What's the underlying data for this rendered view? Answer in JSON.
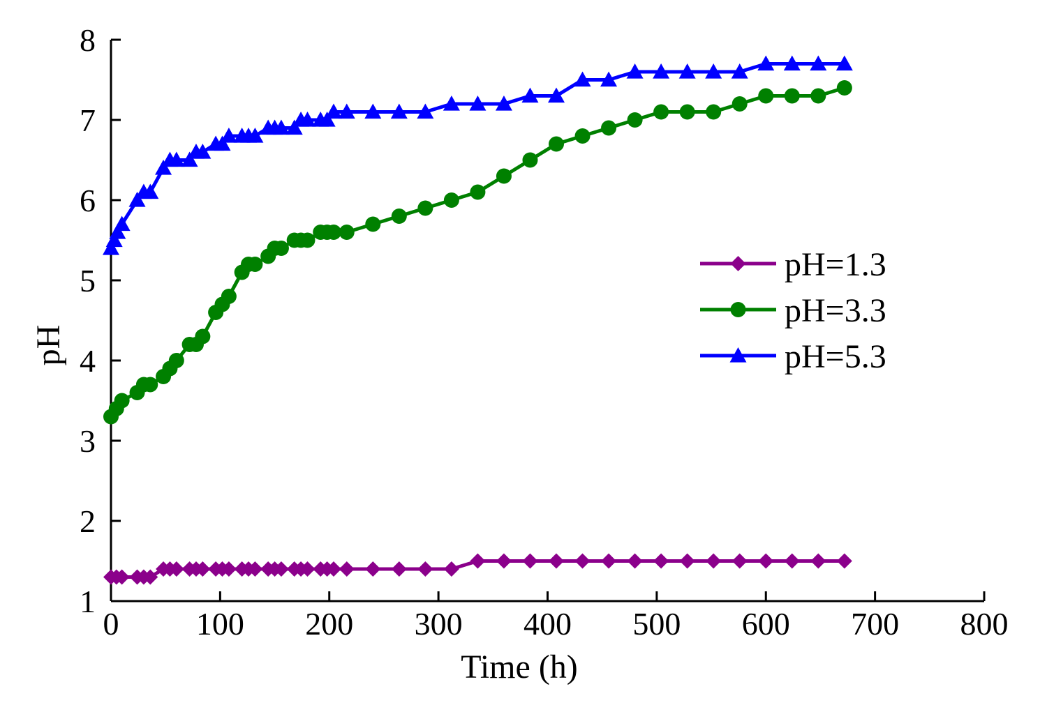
{
  "chart_data": {
    "type": "line",
    "title": "",
    "xlabel": "Time (h)",
    "ylabel": "pH",
    "xlim": [
      0,
      800
    ],
    "ylim": [
      1,
      8
    ],
    "xticks": [
      0,
      100,
      200,
      300,
      400,
      500,
      600,
      700,
      800
    ],
    "yticks": [
      1,
      2,
      3,
      4,
      5,
      6,
      7,
      8
    ],
    "grid": false,
    "legend_position": "right",
    "series": [
      {
        "name": "pH=1.3",
        "color": "#8B008B",
        "marker": "diamond",
        "x": [
          0,
          5,
          10,
          24,
          30,
          36,
          48,
          54,
          60,
          72,
          78,
          84,
          96,
          102,
          108,
          120,
          126,
          132,
          144,
          150,
          156,
          168,
          174,
          180,
          192,
          198,
          204,
          216,
          240,
          264,
          288,
          312,
          336,
          360,
          384,
          408,
          432,
          456,
          480,
          504,
          528,
          552,
          576,
          600,
          624,
          648,
          672
        ],
        "values": [
          1.3,
          1.3,
          1.3,
          1.3,
          1.3,
          1.3,
          1.4,
          1.4,
          1.4,
          1.4,
          1.4,
          1.4,
          1.4,
          1.4,
          1.4,
          1.4,
          1.4,
          1.4,
          1.4,
          1.4,
          1.4,
          1.4,
          1.4,
          1.4,
          1.4,
          1.4,
          1.4,
          1.4,
          1.4,
          1.4,
          1.4,
          1.4,
          1.5,
          1.5,
          1.5,
          1.5,
          1.5,
          1.5,
          1.5,
          1.5,
          1.5,
          1.5,
          1.5,
          1.5,
          1.5,
          1.5,
          1.5
        ]
      },
      {
        "name": "pH=3.3",
        "color": "#008000",
        "marker": "circle",
        "x": [
          0,
          5,
          10,
          24,
          30,
          36,
          48,
          54,
          60,
          72,
          78,
          84,
          96,
          102,
          108,
          120,
          126,
          132,
          144,
          150,
          156,
          168,
          174,
          180,
          192,
          198,
          204,
          216,
          240,
          264,
          288,
          312,
          336,
          360,
          384,
          408,
          432,
          456,
          480,
          504,
          528,
          552,
          576,
          600,
          624,
          648,
          672
        ],
        "values": [
          3.3,
          3.4,
          3.5,
          3.6,
          3.7,
          3.7,
          3.8,
          3.9,
          4.0,
          4.2,
          4.2,
          4.3,
          4.6,
          4.7,
          4.8,
          5.1,
          5.2,
          5.2,
          5.3,
          5.4,
          5.4,
          5.5,
          5.5,
          5.5,
          5.6,
          5.6,
          5.6,
          5.6,
          5.7,
          5.8,
          5.9,
          6.0,
          6.1,
          6.3,
          6.5,
          6.7,
          6.8,
          6.9,
          7.0,
          7.1,
          7.1,
          7.1,
          7.2,
          7.3,
          7.3,
          7.3,
          7.4
        ]
      },
      {
        "name": "pH=5.3",
        "color": "#0000FF",
        "marker": "triangle",
        "x": [
          0,
          3,
          6,
          10,
          24,
          30,
          36,
          48,
          54,
          60,
          72,
          78,
          84,
          96,
          102,
          108,
          120,
          126,
          132,
          144,
          150,
          156,
          168,
          174,
          180,
          192,
          198,
          204,
          216,
          240,
          264,
          288,
          312,
          336,
          360,
          384,
          408,
          432,
          456,
          480,
          504,
          528,
          552,
          576,
          600,
          624,
          648,
          672
        ],
        "values": [
          5.4,
          5.5,
          5.6,
          5.7,
          6.0,
          6.1,
          6.1,
          6.4,
          6.5,
          6.5,
          6.5,
          6.6,
          6.6,
          6.7,
          6.7,
          6.8,
          6.8,
          6.8,
          6.8,
          6.9,
          6.9,
          6.9,
          6.9,
          7.0,
          7.0,
          7.0,
          7.0,
          7.1,
          7.1,
          7.1,
          7.1,
          7.1,
          7.2,
          7.2,
          7.2,
          7.3,
          7.3,
          7.5,
          7.5,
          7.6,
          7.6,
          7.6,
          7.6,
          7.6,
          7.7,
          7.7,
          7.7,
          7.7
        ]
      }
    ]
  }
}
